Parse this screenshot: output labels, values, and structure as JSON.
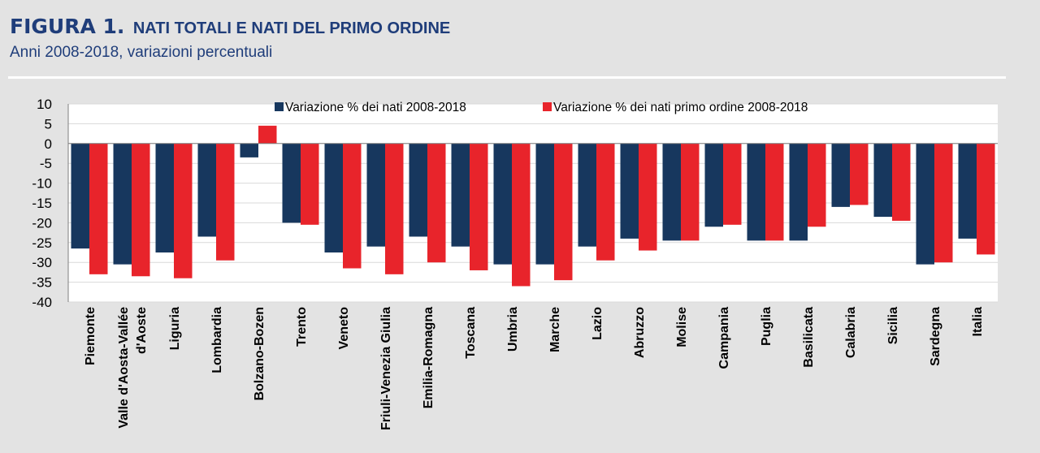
{
  "header": {
    "figure_label": "FIGURA 1.",
    "title": "NATI TOTALI E NATI DEL PRIMO ORDINE",
    "subtitle": "Anni 2008-2018, variazioni percentuali"
  },
  "chart_data": {
    "type": "bar",
    "title": "NATI TOTALI E NATI DEL PRIMO ORDINE",
    "subtitle": "Anni 2008-2018, variazioni percentuali",
    "xlabel": "",
    "ylabel": "",
    "ylim": [
      -40,
      10
    ],
    "yticks": [
      10,
      5,
      0,
      -5,
      -10,
      -15,
      -20,
      -25,
      -30,
      -35,
      -40
    ],
    "grid": true,
    "legend_position": "top",
    "categories": [
      [
        "Piemonte"
      ],
      [
        "Valle d'Aosta-Vallée",
        "d'Aoste"
      ],
      [
        "Liguria"
      ],
      [
        "Lombardia"
      ],
      [
        "Bolzano-Bozen"
      ],
      [
        "Trento"
      ],
      [
        "Veneto"
      ],
      [
        "Friuli-Venezia Giulia"
      ],
      [
        "Emilia-Romagna"
      ],
      [
        "Toscana"
      ],
      [
        "Umbria"
      ],
      [
        "Marche"
      ],
      [
        "Lazio"
      ],
      [
        "Abruzzo"
      ],
      [
        "Molise"
      ],
      [
        "Campania"
      ],
      [
        "Puglia"
      ],
      [
        "Basilicata"
      ],
      [
        "Calabria"
      ],
      [
        "Sicilia"
      ],
      [
        "Sardegna"
      ],
      [
        "Italia"
      ]
    ],
    "series": [
      {
        "name": "Variazione % dei nati 2008-2018",
        "color": "#17375e",
        "values": [
          -26.5,
          -30.5,
          -27.5,
          -23.5,
          -3.5,
          -20.0,
          -27.5,
          -26.0,
          -23.5,
          -26.0,
          -30.5,
          -30.5,
          -26.0,
          -24.0,
          -24.5,
          -21.0,
          -24.5,
          -24.5,
          -16.0,
          -18.5,
          -30.5,
          -24.0
        ]
      },
      {
        "name": "Variazione % dei nati primo ordine 2008-2018",
        "color": "#e8242b",
        "values": [
          -33.0,
          -33.5,
          -34.0,
          -29.5,
          4.5,
          -20.5,
          -31.5,
          -33.0,
          -30.0,
          -32.0,
          -36.0,
          -34.5,
          -29.5,
          -27.0,
          -24.5,
          -20.5,
          -24.5,
          -21.0,
          -15.5,
          -19.5,
          -30.0,
          -28.0
        ]
      }
    ]
  }
}
